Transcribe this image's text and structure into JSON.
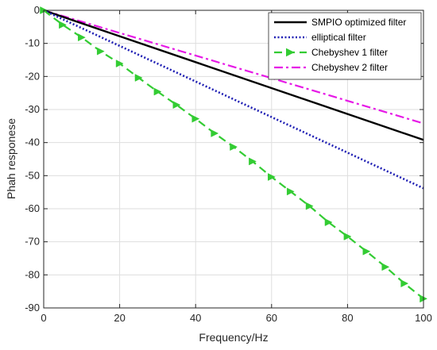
{
  "chart_data": {
    "type": "line",
    "title": "",
    "xlabel": "Frequency/Hz",
    "ylabel": "Phah responese",
    "xlim": [
      0,
      100
    ],
    "ylim": [
      -90,
      0
    ],
    "xticks": [
      0,
      20,
      40,
      60,
      80,
      100
    ],
    "yticks": [
      0,
      -10,
      -20,
      -30,
      -40,
      -50,
      -60,
      -70,
      -80,
      -90
    ],
    "x_tick_labels": [
      "0",
      "20",
      "40",
      "60",
      "80",
      "100"
    ],
    "y_tick_labels": [
      "0",
      "-10",
      "-20",
      "-30",
      "-40",
      "-50",
      "-60",
      "-70",
      "-80",
      "-90"
    ],
    "grid": true,
    "legend_position": "top-right",
    "series": [
      {
        "name": "SMPIO optimized filter",
        "color": "#000000",
        "style": "solid",
        "x": [
          0,
          100
        ],
        "y": [
          0,
          -39.2
        ]
      },
      {
        "name": "elliptical filter",
        "color": "#1f1fb4",
        "style": "dotted",
        "x": [
          0,
          100
        ],
        "y": [
          0,
          -53.8
        ]
      },
      {
        "name": "Chebyshev 1 filter",
        "color": "#33cc33",
        "style": "dashed",
        "marker": "triangle-right",
        "x": [
          0,
          5,
          10,
          15,
          20,
          25,
          30,
          35,
          40,
          45,
          50,
          55,
          60,
          65,
          70,
          75,
          80,
          85,
          90,
          95,
          100
        ],
        "y": [
          0,
          -4.4,
          -8.2,
          -12.4,
          -16.1,
          -20.4,
          -24.6,
          -28.6,
          -32.8,
          -37.2,
          -41.3,
          -45.7,
          -50.4,
          -54.8,
          -59.2,
          -64.1,
          -68.4,
          -72.9,
          -77.6,
          -82.6,
          -87.2
        ]
      },
      {
        "name": "Chebyshev 2 filter",
        "color": "#e619e6",
        "style": "dashdot",
        "x": [
          0,
          100
        ],
        "y": [
          0,
          -34.2
        ]
      }
    ]
  }
}
